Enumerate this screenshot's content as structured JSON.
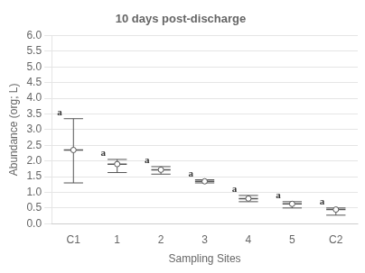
{
  "chart_data": {
    "type": "errorbar",
    "title": "10 days post-discharge",
    "xlabel": "Sampling Sites",
    "ylabel": "Abundance (org; L)",
    "categories": [
      "C1",
      "1",
      "2",
      "3",
      "4",
      "5",
      "C2"
    ],
    "values": [
      2.35,
      1.9,
      1.72,
      1.35,
      0.8,
      0.63,
      0.45
    ],
    "upper": [
      3.35,
      2.05,
      1.82,
      1.4,
      0.9,
      0.7,
      0.5
    ],
    "lower": [
      1.3,
      1.63,
      1.58,
      1.3,
      0.7,
      0.5,
      0.27
    ],
    "annotations": [
      "a",
      "a",
      "a",
      "a",
      "a",
      "a",
      "a"
    ],
    "ylim": [
      0.0,
      6.0
    ],
    "yticks": [
      {
        "value": 0.0,
        "label": "0.0"
      },
      0.5,
      {
        "value": 1.0,
        "label": "1.0"
      },
      1.5,
      {
        "value": 2.0,
        "label": "2.0"
      },
      2.5,
      {
        "value": 3.0,
        "label": "3.0"
      },
      3.5,
      {
        "value": 4.0,
        "label": "4.0"
      },
      4.5,
      {
        "value": 5.0,
        "label": "5.0"
      },
      5.5,
      {
        "value": 6.0,
        "label": "6.0"
      }
    ],
    "color": "#555555",
    "marker": "circle",
    "grid": true
  }
}
